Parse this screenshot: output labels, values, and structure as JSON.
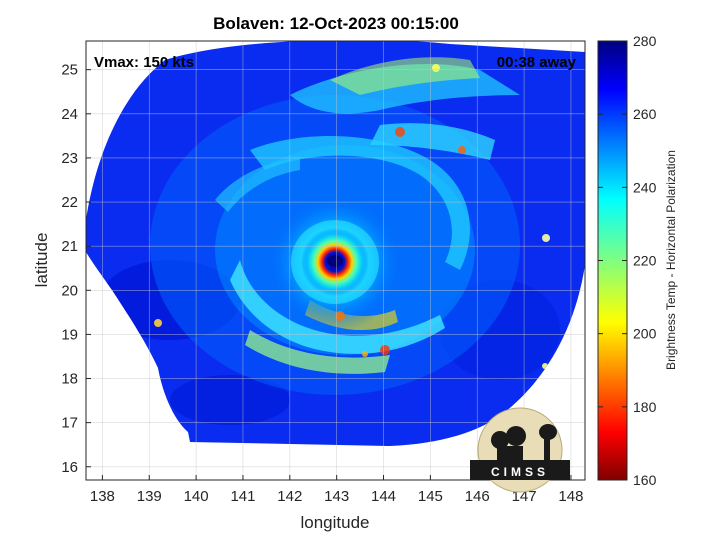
{
  "title": "Bolaven: 12-Oct-2023 00:15:00",
  "vmax_text": "Vmax: 150 kts",
  "away_text": "00:38 away",
  "xlabel": "longitude",
  "ylabel": "latitude",
  "x_ticks": [
    "138",
    "139",
    "140",
    "141",
    "142",
    "143",
    "144",
    "145",
    "146",
    "147",
    "148"
  ],
  "y_ticks": [
    "16",
    "17",
    "18",
    "19",
    "20",
    "21",
    "22",
    "23",
    "24",
    "25"
  ],
  "colorbar": {
    "label": "Brightness Temp - Horizontal Polarization",
    "ticks": [
      "160",
      "180",
      "200",
      "220",
      "240",
      "260",
      "280"
    ],
    "min": 160,
    "max": 280,
    "colormap": "jet"
  },
  "logo_text": "CIMSS",
  "storm_center": {
    "lon": 143.0,
    "lat": 20.65
  },
  "colors": {
    "background": "#ffffff",
    "outside_swath": "#ffffff",
    "eye": "#00007f",
    "eyewall": "#d70000"
  }
}
